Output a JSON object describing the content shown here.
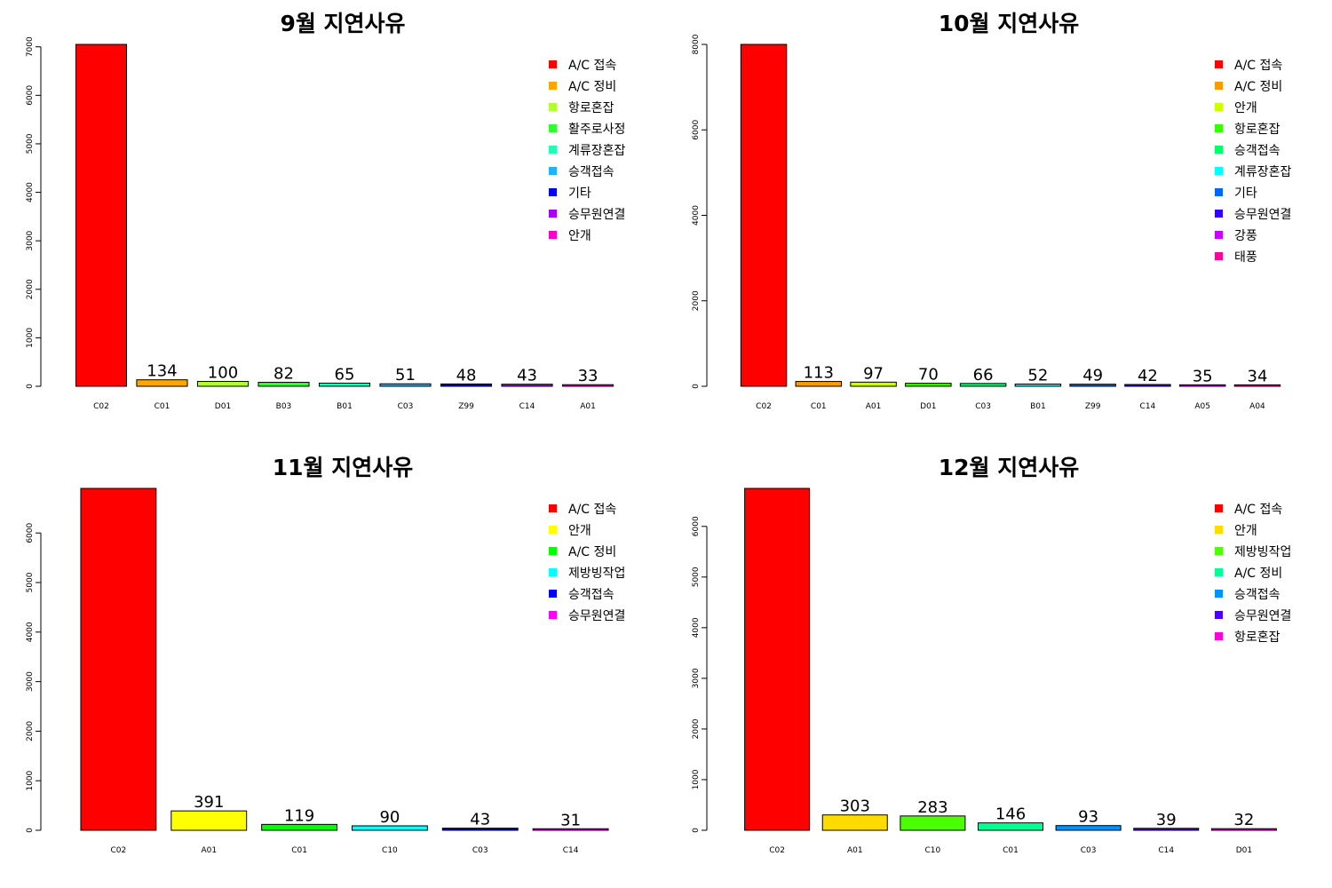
{
  "chart_data": [
    {
      "type": "bar",
      "title": "9월 지연사유",
      "categories": [
        "C02",
        "C01",
        "D01",
        "B03",
        "B01",
        "C03",
        "Z99",
        "C14",
        "A01"
      ],
      "values": [
        7050,
        134,
        100,
        82,
        65,
        51,
        48,
        43,
        33
      ],
      "value_labels": [
        "",
        "134",
        "100",
        "82",
        "65",
        "51",
        "48",
        "43",
        "33"
      ],
      "colors": [
        "#FF0000",
        "#FFA500",
        "#B2FF2E",
        "#2EFF2E",
        "#1FFFB2",
        "#1FB2FF",
        "#0000FF",
        "#A600FF",
        "#FF00CC"
      ],
      "ylim": [
        0,
        7050
      ],
      "yticks": [
        0,
        1000,
        2000,
        3000,
        4000,
        5000,
        6000,
        7000
      ],
      "legend": [
        "A/C 접속",
        "A/C 정비",
        "항로혼잡",
        "활주로사정",
        "계류장혼잡",
        "승객접속",
        "기타",
        "승무원연결",
        "안개"
      ],
      "legend_position": "top-right",
      "grid": false
    },
    {
      "type": "bar",
      "title": "10월 지연사유",
      "categories": [
        "C02",
        "C01",
        "A01",
        "D01",
        "C03",
        "B01",
        "Z99",
        "C14",
        "A05",
        "A04"
      ],
      "values": [
        8000,
        113,
        97,
        70,
        66,
        52,
        49,
        42,
        35,
        34
      ],
      "value_labels": [
        "",
        "113",
        "97",
        "70",
        "66",
        "52",
        "49",
        "42",
        "35",
        "34"
      ],
      "colors": [
        "#FF0000",
        "#FF9900",
        "#CCFF00",
        "#33FF00",
        "#00FF66",
        "#00FFFF",
        "#0066FF",
        "#3300FF",
        "#CC00FF",
        "#FF0099"
      ],
      "ylim": [
        0,
        8000
      ],
      "yticks": [
        0,
        2000,
        4000,
        6000,
        8000
      ],
      "legend": [
        "A/C 접속",
        "A/C 정비",
        "안개",
        "항로혼잡",
        "승객접속",
        "계류장혼잡",
        "기타",
        "승무원연결",
        "강풍",
        "태풍"
      ],
      "legend_position": "top-right",
      "grid": false
    },
    {
      "type": "bar",
      "title": "11월 지연사유",
      "categories": [
        "C02",
        "A01",
        "C01",
        "C10",
        "C03",
        "C14"
      ],
      "values": [
        6900,
        391,
        119,
        90,
        43,
        31
      ],
      "value_labels": [
        "",
        "391",
        "119",
        "90",
        "43",
        "31"
      ],
      "colors": [
        "#FF0000",
        "#FFFF00",
        "#00FF00",
        "#00FFFF",
        "#0000FF",
        "#FF00FF"
      ],
      "ylim": [
        0,
        6900
      ],
      "yticks": [
        0,
        1000,
        2000,
        3000,
        4000,
        5000,
        6000
      ],
      "legend": [
        "A/C 접속",
        "안개",
        "A/C 정비",
        "제방빙작업",
        "승객접속",
        "승무원연결"
      ],
      "legend_position": "top-right",
      "grid": false
    },
    {
      "type": "bar",
      "title": "12월 지연사유",
      "categories": [
        "C02",
        "A01",
        "C10",
        "C01",
        "C03",
        "C14",
        "D01"
      ],
      "values": [
        6750,
        303,
        283,
        146,
        93,
        39,
        32
      ],
      "value_labels": [
        "",
        "303",
        "283",
        "146",
        "93",
        "39",
        "32"
      ],
      "colors": [
        "#FF0000",
        "#FFDB00",
        "#49FF00",
        "#00FF92",
        "#0092FF",
        "#4900FF",
        "#FF00DB"
      ],
      "ylim": [
        0,
        6750
      ],
      "yticks": [
        0,
        1000,
        2000,
        3000,
        4000,
        5000,
        6000
      ],
      "legend": [
        "A/C 접속",
        "안개",
        "제방빙작업",
        "A/C 정비",
        "승객접속",
        "승무원연결",
        "항로혼잡"
      ],
      "legend_position": "top-right",
      "grid": false
    }
  ]
}
